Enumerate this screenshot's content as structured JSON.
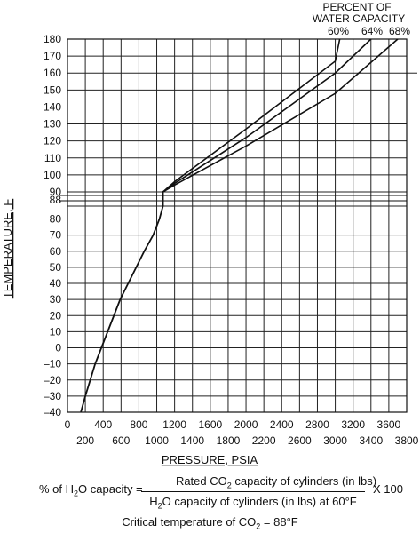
{
  "chart_data": {
    "type": "line",
    "ylabel": "TEMPERATURE, F",
    "xlabel": "PRESSURE, PSIA",
    "annotation_title": [
      "PERCENT OF",
      "WATER CAPACITY"
    ],
    "x_ticks_top_row": [
      "0",
      "400",
      "800",
      "1200",
      "1600",
      "2000",
      "2400",
      "2800",
      "3200",
      "3600"
    ],
    "x_ticks_bottom_row": [
      "200",
      "600",
      "1000",
      "1400",
      "1800",
      "2200",
      "2600",
      "3000",
      "3400",
      "3800"
    ],
    "y_ticks_upper": [
      "180",
      "170",
      "160",
      "150",
      "140",
      "130",
      "120",
      "110",
      "100",
      "90"
    ],
    "y_ticks_lower": [
      "88",
      "80",
      "70",
      "60",
      "50",
      "40",
      "30",
      "20",
      "10",
      "0",
      "–10",
      "–20",
      "–30",
      "–40"
    ],
    "upper_y_range": [
      90,
      180
    ],
    "lower_y_range": [
      -40,
      88
    ],
    "x_range": [
      0,
      3800
    ],
    "saturation_curve": [
      {
        "x": 150,
        "y": -40
      },
      {
        "x": 200,
        "y": -30
      },
      {
        "x": 255,
        "y": -20
      },
      {
        "x": 310,
        "y": -10
      },
      {
        "x": 380,
        "y": 0
      },
      {
        "x": 450,
        "y": 10
      },
      {
        "x": 520,
        "y": 20
      },
      {
        "x": 590,
        "y": 30
      },
      {
        "x": 680,
        "y": 40
      },
      {
        "x": 770,
        "y": 50
      },
      {
        "x": 860,
        "y": 60
      },
      {
        "x": 960,
        "y": 70
      },
      {
        "x": 1030,
        "y": 80
      },
      {
        "x": 1070,
        "y": 88
      }
    ],
    "series": [
      {
        "name": "60%",
        "points": [
          {
            "x": 1070,
            "y": 90
          },
          {
            "x": 1200,
            "y": 96
          },
          {
            "x": 2000,
            "y": 127
          },
          {
            "x": 3000,
            "y": 167
          },
          {
            "x": 3050,
            "y": 180
          }
        ]
      },
      {
        "name": "64%",
        "points": [
          {
            "x": 1070,
            "y": 90
          },
          {
            "x": 1200,
            "y": 95
          },
          {
            "x": 2000,
            "y": 122
          },
          {
            "x": 3000,
            "y": 160
          },
          {
            "x": 3400,
            "y": 180
          }
        ]
      },
      {
        "name": "68%",
        "points": [
          {
            "x": 1070,
            "y": 90
          },
          {
            "x": 1200,
            "y": 94
          },
          {
            "x": 2000,
            "y": 117
          },
          {
            "x": 3000,
            "y": 148
          },
          {
            "x": 3700,
            "y": 180
          }
        ]
      }
    ],
    "grid": true
  },
  "formula": {
    "lhs_a": "% of H",
    "lhs_sub": "2",
    "lhs_b": "O capacity =",
    "num_a": "Rated CO",
    "num_sub": "2",
    "num_b": " capacity of cylinders (in lbs)",
    "den_a": "H",
    "den_sub": "2",
    "den_b": "O capacity of cylinders (in lbs) at 60°F",
    "rhs": "X 100"
  },
  "critical": {
    "text_a": "Critical temperature of CO",
    "text_sub": "2",
    "text_b": " = 88°F"
  }
}
